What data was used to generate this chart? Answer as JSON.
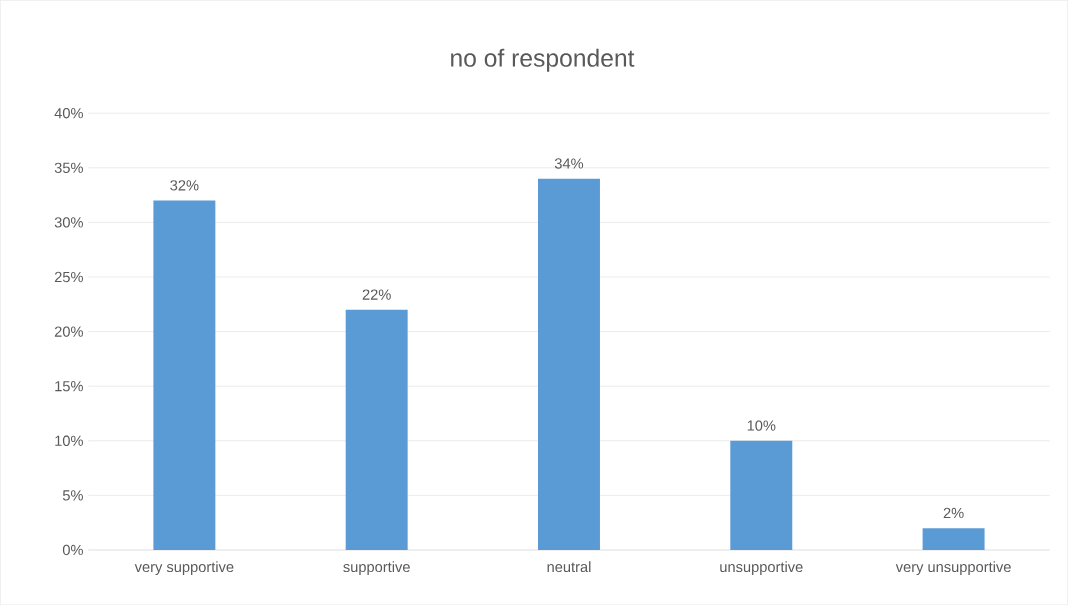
{
  "chart_data": {
    "type": "bar",
    "title": "no of respondent",
    "categories": [
      "very supportive",
      "supportive",
      "neutral",
      "unsupportive",
      "very unsupportive"
    ],
    "values": [
      32,
      22,
      34,
      10,
      2
    ],
    "value_labels": [
      "32%",
      "22%",
      "34%",
      "10%",
      "2%"
    ],
    "color": "#5b9bd5",
    "ylim": [
      0,
      40
    ],
    "yticks": [
      {
        "value": 0,
        "label": "0%"
      },
      {
        "value": 5,
        "label": "5%"
      },
      {
        "value": 10,
        "label": "10%"
      },
      {
        "value": 15,
        "label": "15%"
      },
      {
        "value": 20,
        "label": "20%"
      },
      {
        "value": 25,
        "label": "25%"
      },
      {
        "value": 30,
        "label": "30%"
      },
      {
        "value": 35,
        "label": "35%"
      },
      {
        "value": 40,
        "label": "40%"
      }
    ],
    "grid": "y"
  }
}
